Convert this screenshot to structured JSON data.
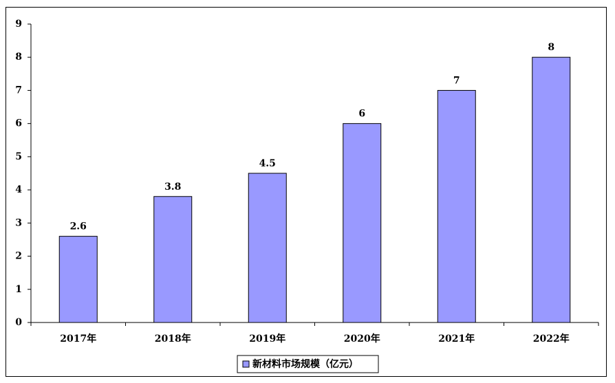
{
  "chart_data": {
    "type": "bar",
    "categories": [
      "2017年",
      "2018年",
      "2019年",
      "2020年",
      "2021年",
      "2022年"
    ],
    "series": [
      {
        "name": "新材料市场规模（亿元）",
        "color": "#9999ff",
        "values": [
          2.6,
          3.8,
          4.5,
          6,
          7,
          8
        ]
      }
    ],
    "ylim": [
      0,
      9
    ],
    "yticks": [
      0,
      1,
      2,
      3,
      4,
      5,
      6,
      7,
      8,
      9
    ],
    "grid": false,
    "legend": "bottom"
  }
}
